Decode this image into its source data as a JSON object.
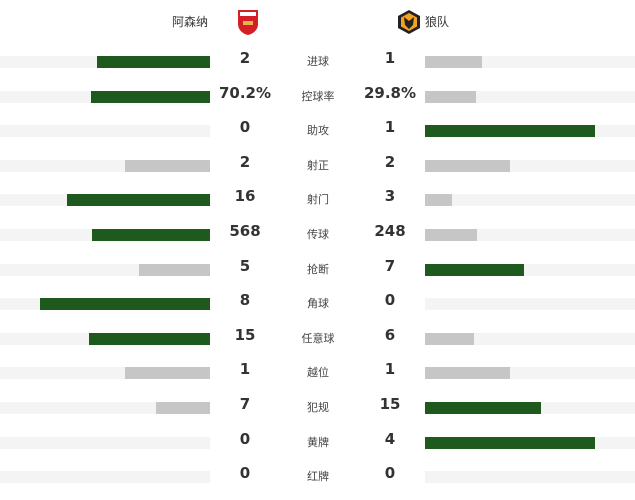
{
  "home": {
    "name": "阿森纳",
    "logo": "arsenal-crest"
  },
  "away": {
    "name": "狼队",
    "logo": "wolves-crest"
  },
  "colors": {
    "leader": "#1e5a1e",
    "trailer": "#c6c6c6",
    "track": "#f4f4f4"
  },
  "stats": [
    {
      "label": "进球",
      "home": "2",
      "away": "1",
      "hv": 2,
      "av": 1
    },
    {
      "label": "控球率",
      "home": "70.2%",
      "away": "29.8%",
      "hv": 70.2,
      "av": 29.8
    },
    {
      "label": "助攻",
      "home": "0",
      "away": "1",
      "hv": 0,
      "av": 1
    },
    {
      "label": "射正",
      "home": "2",
      "away": "2",
      "hv": 2,
      "av": 2
    },
    {
      "label": "射门",
      "home": "16",
      "away": "3",
      "hv": 16,
      "av": 3
    },
    {
      "label": "传球",
      "home": "568",
      "away": "248",
      "hv": 568,
      "av": 248
    },
    {
      "label": "抢断",
      "home": "5",
      "away": "7",
      "hv": 5,
      "av": 7
    },
    {
      "label": "角球",
      "home": "8",
      "away": "0",
      "hv": 8,
      "av": 0
    },
    {
      "label": "任意球",
      "home": "15",
      "away": "6",
      "hv": 15,
      "av": 6
    },
    {
      "label": "越位",
      "home": "1",
      "away": "1",
      "hv": 1,
      "av": 1
    },
    {
      "label": "犯规",
      "home": "7",
      "away": "15",
      "hv": 7,
      "av": 15
    },
    {
      "label": "黄牌",
      "home": "0",
      "away": "4",
      "hv": 0,
      "av": 4
    },
    {
      "label": "红牌",
      "home": "0",
      "away": "0",
      "hv": 0,
      "av": 0
    }
  ]
}
